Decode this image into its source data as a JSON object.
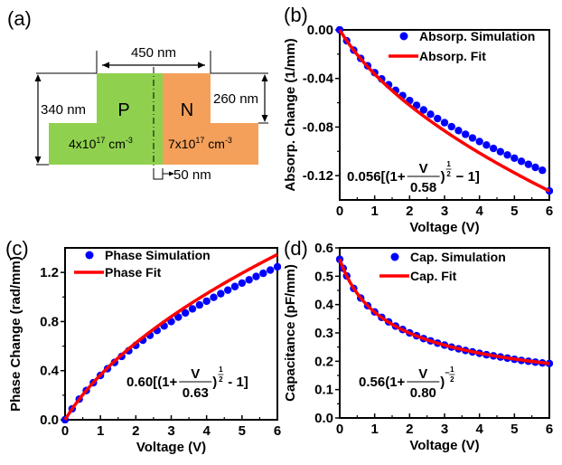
{
  "panel_a": {
    "label": "(a)",
    "p_region": {
      "label": "P",
      "doping": "4x10",
      "doping_exp": "17",
      "unit": " cm",
      "unit_exp": "-3",
      "color": "#8fd14f"
    },
    "n_region": {
      "label": "N",
      "doping": "7x10",
      "doping_exp": "17",
      "unit": " cm",
      "unit_exp": "-3",
      "color": "#f4a05a"
    },
    "dim_width": "450 nm",
    "dim_height_total": "340 nm",
    "dim_height_rib": "260 nm",
    "dim_offset": "50 nm"
  },
  "chart_data": [
    {
      "id": "b",
      "panel_label": "(b)",
      "type": "line",
      "xlabel": "Voltage (V)",
      "ylabel": "Absorp. Change (1/mm)",
      "xlim": [
        0,
        6
      ],
      "ylim": [
        -0.14,
        0.0
      ],
      "xticks": [
        0,
        1,
        2,
        3,
        4,
        5,
        6
      ],
      "xtick_labels": [
        "0",
        "1",
        "2",
        "3",
        "4",
        "5",
        "6"
      ],
      "yticks": [
        0.0,
        -0.04,
        -0.08,
        -0.12
      ],
      "ytick_labels": [
        "0.00",
        "-0.04",
        "-0.08",
        "-0.12"
      ],
      "legend": [
        "Absorp. Simulation",
        "Absorp.  Fit"
      ],
      "legend_position": "top-right",
      "annotation": {
        "prefix": "0.056[(1+",
        "num": "V",
        "den": "0.58",
        "exp": "1/2",
        "suffix": "− 1]"
      },
      "series": [
        {
          "name": "Absorp. Simulation",
          "kind": "scatter",
          "color": "#0000ff",
          "x": [
            0,
            0.2,
            0.4,
            0.6,
            0.8,
            1.0,
            1.2,
            1.4,
            1.6,
            1.8,
            2.0,
            2.2,
            2.4,
            2.6,
            2.8,
            3.0,
            3.2,
            3.4,
            3.6,
            3.8,
            4.0,
            4.2,
            4.4,
            4.6,
            4.8,
            5.0,
            5.2,
            5.4,
            5.6,
            5.8,
            6.0
          ],
          "y": [
            0,
            -0.009,
            -0.0167,
            -0.0235,
            -0.0296,
            -0.0352,
            -0.0404,
            -0.0452,
            -0.0498,
            -0.0541,
            -0.0582,
            -0.0621,
            -0.0659,
            -0.0695,
            -0.073,
            -0.0764,
            -0.0797,
            -0.0829,
            -0.086,
            -0.089,
            -0.0919,
            -0.0948,
            -0.0976,
            -0.1003,
            -0.103,
            -0.1056,
            -0.1082,
            -0.1107,
            -0.1132,
            -0.1156,
            -0.1326
          ]
        },
        {
          "name": "Absorp.  Fit",
          "kind": "line",
          "color": "#ff0000",
          "formula": "-0.056*(sqrt(1+V/0.58)-1)"
        }
      ]
    },
    {
      "id": "c",
      "panel_label": "(c)",
      "type": "line",
      "xlabel": "Voltage (V)",
      "ylabel": "Phase Change (rad/mm)",
      "xlim": [
        0,
        6
      ],
      "ylim": [
        0.0,
        1.4
      ],
      "xticks": [
        0,
        1,
        2,
        3,
        4,
        5,
        6
      ],
      "xtick_labels": [
        "0",
        "1",
        "2",
        "3",
        "4",
        "5",
        "6"
      ],
      "yticks": [
        0.0,
        0.4,
        0.8,
        1.2
      ],
      "ytick_labels": [
        "0.0",
        "0.4",
        "0.8",
        "1.2"
      ],
      "legend": [
        "Phase Simulation",
        "Phase Fit"
      ],
      "legend_position": "top-left",
      "annotation": {
        "prefix": "0.60[(1+",
        "num": "V",
        "den": "0.63",
        "exp": "1/2",
        "suffix": "- 1]"
      },
      "series": [
        {
          "name": "Phase Simulation",
          "kind": "scatter",
          "color": "#0000ff",
          "x": [
            0,
            0.2,
            0.4,
            0.6,
            0.8,
            1.0,
            1.2,
            1.4,
            1.6,
            1.8,
            2.0,
            2.2,
            2.4,
            2.6,
            2.8,
            3.0,
            3.2,
            3.4,
            3.6,
            3.8,
            4.0,
            4.2,
            4.4,
            4.6,
            4.8,
            5.0,
            5.2,
            5.4,
            5.6,
            5.8,
            6.0
          ],
          "y": [
            0,
            0.089,
            0.168,
            0.238,
            0.302,
            0.361,
            0.416,
            0.467,
            0.516,
            0.562,
            0.606,
            0.648,
            0.688,
            0.727,
            0.764,
            0.8,
            0.836,
            0.87,
            0.903,
            0.935,
            0.966,
            0.997,
            1.027,
            1.056,
            1.085,
            1.113,
            1.14,
            1.167,
            1.193,
            1.219,
            1.246
          ]
        },
        {
          "name": "Phase Fit",
          "kind": "line",
          "color": "#ff0000",
          "formula": "0.60*(sqrt(1+V/0.63)-1)"
        }
      ]
    },
    {
      "id": "d",
      "panel_label": "(d)",
      "type": "line",
      "xlabel": "Voltage (V)",
      "ylabel": "Capacitance (pF/mm)",
      "xlim": [
        0,
        6
      ],
      "ylim": [
        0.0,
        0.6
      ],
      "xticks": [
        0,
        1,
        2,
        3,
        4,
        5,
        6
      ],
      "xtick_labels": [
        "0",
        "1",
        "2",
        "3",
        "4",
        "5",
        "6"
      ],
      "yticks": [
        0.0,
        0.1,
        0.2,
        0.3,
        0.4,
        0.5,
        0.6
      ],
      "ytick_labels": [
        "0.0",
        "0.1",
        "0.2",
        "0.3",
        "0.4",
        "0.5",
        "0.6"
      ],
      "legend": [
        "Cap. Simulation",
        "Cap. Fit"
      ],
      "legend_position": "top-right",
      "annotation": {
        "prefix": "0.56(1+",
        "num": "V",
        "den": "0.80",
        "exp": "-1/2",
        "suffix": ""
      },
      "series": [
        {
          "name": "Cap. Simulation",
          "kind": "scatter",
          "color": "#0000ff",
          "x": [
            0,
            0.1,
            0.2,
            0.4,
            0.6,
            0.8,
            1.0,
            1.2,
            1.4,
            1.6,
            1.8,
            2.0,
            2.2,
            2.4,
            2.6,
            2.8,
            3.0,
            3.2,
            3.4,
            3.6,
            3.8,
            4.0,
            4.2,
            4.4,
            4.6,
            4.8,
            5.0,
            5.2,
            5.4,
            5.6,
            5.8,
            6.0
          ],
          "y": [
            0.56,
            0.528,
            0.501,
            0.457,
            0.423,
            0.396,
            0.374,
            0.355,
            0.339,
            0.324,
            0.312,
            0.3,
            0.29,
            0.28,
            0.272,
            0.264,
            0.257,
            0.25,
            0.244,
            0.238,
            0.233,
            0.228,
            0.223,
            0.219,
            0.215,
            0.211,
            0.207,
            0.203,
            0.2,
            0.197,
            0.194,
            0.192
          ]
        },
        {
          "name": "Cap. Fit",
          "kind": "line",
          "color": "#ff0000",
          "formula": "0.56*(1+V/0.80)^(-1/2)"
        }
      ]
    }
  ]
}
